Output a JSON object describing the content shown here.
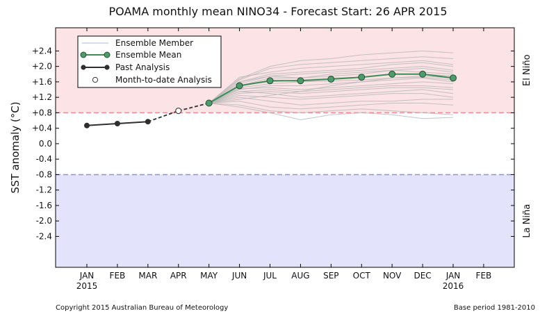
{
  "chart_data": {
    "type": "line",
    "title": "POAMA monthly mean NINO34 - Forecast Start: 26 APR 2015",
    "ylabel": "SST anomaly (°C)",
    "ylim": [
      -3.2,
      3.0
    ],
    "yticks": [
      "+2.4",
      "+2.0",
      "+1.6",
      "+1.2",
      "+0.8",
      "+0.4",
      "0.0",
      "-0.4",
      "-0.8",
      "-1.2",
      "-1.6",
      "-2.0",
      "-2.4"
    ],
    "ytick_values": [
      2.4,
      2.0,
      1.6,
      1.2,
      0.8,
      0.4,
      0.0,
      -0.4,
      -0.8,
      -1.2,
      -1.6,
      -2.0,
      -2.4
    ],
    "categories": [
      "JAN",
      "FEB",
      "MAR",
      "APR",
      "MAY",
      "JUN",
      "JUL",
      "AUG",
      "SEP",
      "OCT",
      "NOV",
      "DEC",
      "JAN",
      "FEB"
    ],
    "year_labels": [
      {
        "index": 0,
        "label": "2015"
      },
      {
        "index": 12,
        "label": "2016"
      }
    ],
    "thresholds": {
      "el_nino": 0.8,
      "la_nina": -0.8
    },
    "region_labels": {
      "top": "El Niño",
      "bottom": "La Niña"
    },
    "colors": {
      "el_nino_fill": "#fbe3e6",
      "la_nina_fill": "#e3e4fb",
      "el_nino_line": "#f08b94",
      "la_nina_line": "#8a8fe0",
      "ensemble_member": "#b9b9b9",
      "ensemble_mean_line": "#3f8a55",
      "ensemble_mean_marker": "#4f9a6c",
      "past_analysis": "#2f2f2f"
    },
    "legend": {
      "position": "top-left",
      "entries": [
        "Ensemble Member",
        "Ensemble Mean",
        "Past Analysis",
        "Month-to-date Analysis"
      ]
    },
    "series": [
      {
        "name": "Past Analysis",
        "x": [
          0,
          1,
          2
        ],
        "values": [
          0.47,
          0.52,
          0.57
        ]
      },
      {
        "name": "Month-to-date Analysis",
        "x": [
          3
        ],
        "values": [
          0.85
        ]
      },
      {
        "name": "Ensemble Mean",
        "x": [
          4,
          5,
          6,
          7,
          8,
          9,
          10,
          11,
          12
        ],
        "values": [
          1.05,
          1.5,
          1.63,
          1.63,
          1.67,
          1.72,
          1.8,
          1.8,
          1.7
        ]
      }
    ],
    "ensemble_members": [
      [
        1.05,
        1.72,
        1.85,
        1.95,
        2.0,
        2.05,
        2.1,
        2.15,
        2.05
      ],
      [
        1.05,
        1.65,
        1.95,
        2.05,
        2.1,
        2.15,
        2.2,
        2.25,
        2.2
      ],
      [
        1.05,
        1.68,
        2.0,
        2.15,
        2.2,
        2.3,
        2.35,
        2.4,
        2.35
      ],
      [
        1.05,
        1.55,
        1.75,
        1.8,
        1.85,
        1.9,
        1.95,
        2.0,
        1.9
      ],
      [
        1.05,
        1.6,
        1.8,
        1.85,
        1.9,
        1.95,
        2.05,
        2.1,
        2.0
      ],
      [
        1.05,
        1.5,
        1.7,
        1.7,
        1.75,
        1.8,
        1.9,
        1.85,
        1.8
      ],
      [
        1.05,
        1.52,
        1.6,
        1.65,
        1.7,
        1.72,
        1.8,
        1.8,
        1.75
      ],
      [
        1.05,
        1.45,
        1.55,
        1.6,
        1.62,
        1.65,
        1.7,
        1.72,
        1.65
      ],
      [
        1.05,
        1.4,
        1.5,
        1.5,
        1.55,
        1.6,
        1.65,
        1.7,
        1.6
      ],
      [
        1.05,
        1.42,
        1.45,
        1.4,
        1.45,
        1.5,
        1.55,
        1.6,
        1.55
      ],
      [
        1.05,
        1.35,
        1.4,
        1.35,
        1.4,
        1.45,
        1.5,
        1.5,
        1.45
      ],
      [
        1.05,
        1.3,
        1.35,
        1.3,
        1.35,
        1.4,
        1.45,
        1.45,
        1.4
      ],
      [
        1.05,
        1.35,
        1.3,
        1.2,
        1.25,
        1.3,
        1.35,
        1.4,
        1.3
      ],
      [
        1.05,
        1.25,
        1.2,
        1.15,
        1.2,
        1.25,
        1.3,
        1.3,
        1.2
      ],
      [
        1.05,
        1.2,
        1.1,
        1.0,
        1.05,
        1.1,
        1.1,
        1.15,
        1.15
      ],
      [
        1.05,
        1.1,
        0.95,
        0.9,
        0.95,
        1.0,
        1.05,
        1.05,
        1.0
      ],
      [
        1.05,
        1.0,
        0.85,
        0.8,
        0.85,
        0.9,
        0.85,
        0.8,
        0.75
      ],
      [
        1.05,
        0.95,
        0.8,
        0.62,
        0.75,
        0.8,
        0.75,
        0.65,
        0.68
      ],
      [
        1.05,
        1.15,
        1.25,
        1.35,
        1.5,
        1.6,
        1.7,
        1.75,
        1.7
      ],
      [
        1.05,
        1.6,
        1.75,
        1.7,
        1.8,
        1.85,
        1.9,
        1.95,
        1.85
      ]
    ]
  },
  "footer": {
    "copyright": "Copyright 2015 Australian Bureau of Meteorology",
    "base_period": "Base period 1981-2010"
  }
}
